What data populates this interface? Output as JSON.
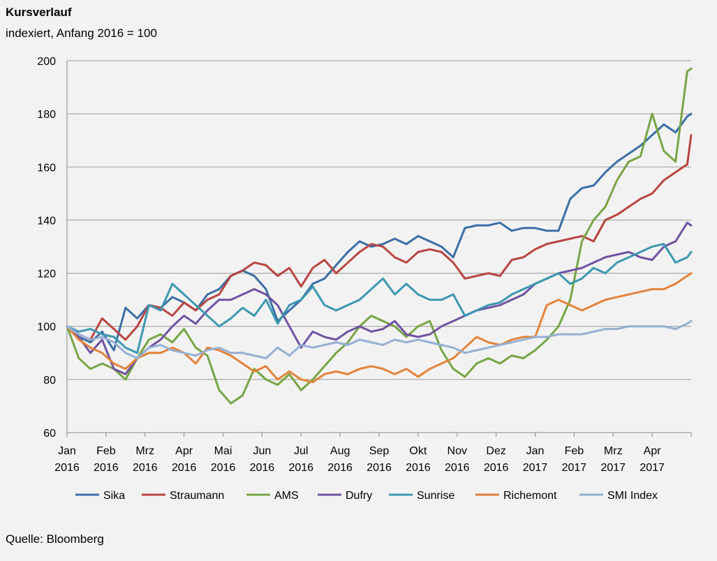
{
  "chart_data": {
    "type": "line",
    "title": "Kursverlauf",
    "subtitle": "indexiert, Anfang 2016 = 100",
    "source": "Quelle: Bloomberg",
    "ylim": [
      60,
      200
    ],
    "yticks": [
      "60",
      "80",
      "100",
      "120",
      "140",
      "160",
      "180",
      "200"
    ],
    "grid": true,
    "legend_position": "bottom",
    "x_ticks": [
      {
        "month": "Jan",
        "year": "2016"
      },
      {
        "month": "Feb",
        "year": "2016"
      },
      {
        "month": "Mrz",
        "year": "2016"
      },
      {
        "month": "Apr",
        "year": "2016"
      },
      {
        "month": "Mai",
        "year": "2016"
      },
      {
        "month": "Jun",
        "year": "2016"
      },
      {
        "month": "Jul",
        "year": "2016"
      },
      {
        "month": "Aug",
        "year": "2016"
      },
      {
        "month": "Sep",
        "year": "2016"
      },
      {
        "month": "Okt",
        "year": "2016"
      },
      {
        "month": "Nov",
        "year": "2016"
      },
      {
        "month": "Dez",
        "year": "2016"
      },
      {
        "month": "Jan",
        "year": "2017"
      },
      {
        "month": "Feb",
        "year": "2017"
      },
      {
        "month": "Mrz",
        "year": "2017"
      },
      {
        "month": "Apr",
        "year": "2017"
      }
    ],
    "x_range": [
      0,
      16
    ],
    "series": [
      {
        "name": "Sika",
        "color": "#3a6ea5",
        "x": [
          0,
          0.3,
          0.6,
          0.9,
          1.2,
          1.5,
          1.8,
          2.1,
          2.4,
          2.7,
          3.0,
          3.3,
          3.6,
          3.9,
          4.2,
          4.5,
          4.8,
          5.1,
          5.4,
          5.7,
          6.0,
          6.3,
          6.6,
          6.9,
          7.2,
          7.5,
          7.8,
          8.1,
          8.4,
          8.7,
          9.0,
          9.3,
          9.6,
          9.9,
          10.2,
          10.5,
          10.8,
          11.1,
          11.4,
          11.7,
          12.0,
          12.3,
          12.6,
          12.9,
          13.2,
          13.5,
          13.8,
          14.1,
          14.4,
          14.7,
          15.0,
          15.3,
          15.6,
          15.9,
          16.0
        ],
        "values": [
          100,
          96,
          94,
          98,
          91,
          107,
          103,
          108,
          107,
          111,
          109,
          106,
          112,
          114,
          119,
          121,
          119,
          114,
          102,
          106,
          110,
          116,
          118,
          123,
          128,
          132,
          130,
          131,
          133,
          131,
          134,
          132,
          130,
          126,
          137,
          138,
          138,
          139,
          136,
          137,
          137,
          136,
          136,
          148,
          152,
          153,
          158,
          162,
          165,
          168,
          172,
          176,
          173,
          179,
          180
        ]
      },
      {
        "name": "Straumann",
        "color": "#b84542",
        "x": [
          0,
          0.3,
          0.6,
          0.9,
          1.2,
          1.5,
          1.8,
          2.1,
          2.4,
          2.7,
          3.0,
          3.3,
          3.6,
          3.9,
          4.2,
          4.5,
          4.8,
          5.1,
          5.4,
          5.7,
          6.0,
          6.3,
          6.6,
          6.9,
          7.2,
          7.5,
          7.8,
          8.1,
          8.4,
          8.7,
          9.0,
          9.3,
          9.6,
          9.9,
          10.2,
          10.5,
          10.8,
          11.1,
          11.4,
          11.7,
          12.0,
          12.3,
          12.6,
          12.9,
          13.2,
          13.5,
          13.8,
          14.1,
          14.4,
          14.7,
          15.0,
          15.3,
          15.6,
          15.9,
          16.0
        ],
        "values": [
          100,
          97,
          95,
          103,
          99,
          95,
          100,
          108,
          107,
          104,
          109,
          106,
          110,
          112,
          119,
          121,
          124,
          123,
          119,
          122,
          115,
          122,
          125,
          120,
          124,
          128,
          131,
          130,
          126,
          124,
          128,
          129,
          128,
          124,
          118,
          119,
          120,
          119,
          125,
          126,
          129,
          131,
          132,
          133,
          134,
          132,
          140,
          142,
          145,
          148,
          150,
          155,
          158,
          161,
          172
        ]
      },
      {
        "name": "AMS",
        "color": "#77a546",
        "x": [
          0,
          0.3,
          0.6,
          0.9,
          1.2,
          1.5,
          1.8,
          2.1,
          2.4,
          2.7,
          3.0,
          3.3,
          3.6,
          3.9,
          4.2,
          4.5,
          4.8,
          5.1,
          5.4,
          5.7,
          6.0,
          6.3,
          6.6,
          6.9,
          7.2,
          7.5,
          7.8,
          8.1,
          8.4,
          8.7,
          9.0,
          9.3,
          9.6,
          9.9,
          10.2,
          10.5,
          10.8,
          11.1,
          11.4,
          11.7,
          12.0,
          12.3,
          12.6,
          12.9,
          13.2,
          13.5,
          13.8,
          14.1,
          14.4,
          14.7,
          15.0,
          15.3,
          15.6,
          15.9,
          16.0
        ],
        "values": [
          100,
          88,
          84,
          86,
          84,
          80,
          88,
          95,
          97,
          94,
          99,
          92,
          89,
          76,
          71,
          74,
          84,
          80,
          78,
          82,
          76,
          80,
          85,
          90,
          94,
          100,
          104,
          102,
          100,
          96,
          100,
          102,
          91,
          84,
          81,
          86,
          88,
          86,
          89,
          88,
          91,
          95,
          100,
          110,
          132,
          140,
          145,
          155,
          162,
          164,
          180,
          166,
          162,
          196,
          197
        ]
      },
      {
        "name": "Dufry",
        "color": "#7053a0",
        "x": [
          0,
          0.3,
          0.6,
          0.9,
          1.2,
          1.5,
          1.8,
          2.1,
          2.4,
          2.7,
          3.0,
          3.3,
          3.6,
          3.9,
          4.2,
          4.5,
          4.8,
          5.1,
          5.4,
          5.7,
          6.0,
          6.3,
          6.6,
          6.9,
          7.2,
          7.5,
          7.8,
          8.1,
          8.4,
          8.7,
          9.0,
          9.3,
          9.6,
          9.9,
          10.2,
          10.5,
          10.8,
          11.1,
          11.4,
          11.7,
          12.0,
          12.3,
          12.6,
          12.9,
          13.2,
          13.5,
          13.8,
          14.1,
          14.4,
          14.7,
          15.0,
          15.3,
          15.6,
          15.9,
          16.0
        ],
        "values": [
          100,
          96,
          90,
          95,
          84,
          82,
          88,
          92,
          95,
          100,
          104,
          101,
          106,
          110,
          110,
          112,
          114,
          112,
          108,
          100,
          92,
          98,
          96,
          95,
          98,
          100,
          98,
          99,
          102,
          97,
          96,
          97,
          100,
          102,
          104,
          106,
          107,
          108,
          110,
          112,
          116,
          118,
          120,
          121,
          122,
          124,
          126,
          127,
          128,
          126,
          125,
          130,
          132,
          139,
          138
        ]
      },
      {
        "name": "Sunrise",
        "color": "#3c97b0",
        "x": [
          0,
          0.3,
          0.6,
          0.9,
          1.2,
          1.5,
          1.8,
          2.1,
          2.4,
          2.7,
          3.0,
          3.3,
          3.6,
          3.9,
          4.2,
          4.5,
          4.8,
          5.1,
          5.4,
          5.7,
          6.0,
          6.3,
          6.6,
          6.9,
          7.2,
          7.5,
          7.8,
          8.1,
          8.4,
          8.7,
          9.0,
          9.3,
          9.6,
          9.9,
          10.2,
          10.5,
          10.8,
          11.1,
          11.4,
          11.7,
          12.0,
          12.3,
          12.6,
          12.9,
          13.2,
          13.5,
          13.8,
          14.1,
          14.4,
          14.7,
          15.0,
          15.3,
          15.6,
          15.9,
          16.0
        ],
        "values": [
          100,
          98,
          99,
          97,
          96,
          92,
          90,
          108,
          106,
          116,
          112,
          108,
          104,
          100,
          103,
          107,
          104,
          110,
          101,
          108,
          110,
          115,
          108,
          106,
          108,
          110,
          114,
          118,
          112,
          116,
          112,
          110,
          110,
          112,
          104,
          106,
          108,
          109,
          112,
          114,
          116,
          118,
          120,
          116,
          118,
          122,
          120,
          124,
          126,
          128,
          130,
          131,
          124,
          126,
          128
        ]
      },
      {
        "name": "Richemont",
        "color": "#e3833a",
        "x": [
          0,
          0.3,
          0.6,
          0.9,
          1.2,
          1.5,
          1.8,
          2.1,
          2.4,
          2.7,
          3.0,
          3.3,
          3.6,
          3.9,
          4.2,
          4.5,
          4.8,
          5.1,
          5.4,
          5.7,
          6.0,
          6.3,
          6.6,
          6.9,
          7.2,
          7.5,
          7.8,
          8.1,
          8.4,
          8.7,
          9.0,
          9.3,
          9.6,
          9.9,
          10.2,
          10.5,
          10.8,
          11.1,
          11.4,
          11.7,
          12.0,
          12.3,
          12.6,
          12.9,
          13.2,
          13.5,
          13.8,
          14.1,
          14.4,
          14.7,
          15.0,
          15.3,
          15.6,
          15.9,
          16.0
        ],
        "values": [
          100,
          95,
          92,
          90,
          86,
          84,
          88,
          90,
          90,
          92,
          90,
          86,
          92,
          91,
          89,
          86,
          83,
          85,
          80,
          83,
          80,
          79,
          82,
          83,
          82,
          84,
          85,
          84,
          82,
          84,
          81,
          84,
          86,
          88,
          92,
          96,
          94,
          93,
          95,
          96,
          96,
          108,
          110,
          108,
          106,
          108,
          110,
          111,
          112,
          113,
          114,
          114,
          116,
          119,
          120
        ]
      },
      {
        "name": "SMI Index",
        "color": "#96b0d4",
        "x": [
          0,
          0.3,
          0.6,
          0.9,
          1.2,
          1.5,
          1.8,
          2.1,
          2.4,
          2.7,
          3.0,
          3.3,
          3.6,
          3.9,
          4.2,
          4.5,
          4.8,
          5.1,
          5.4,
          5.7,
          6.0,
          6.3,
          6.6,
          6.9,
          7.2,
          7.5,
          7.8,
          8.1,
          8.4,
          8.7,
          9.0,
          9.3,
          9.6,
          9.9,
          10.2,
          10.5,
          10.8,
          11.1,
          11.4,
          11.7,
          12.0,
          12.3,
          12.6,
          12.9,
          13.2,
          13.5,
          13.8,
          14.1,
          14.4,
          14.7,
          15.0,
          15.3,
          15.6,
          15.9,
          16.0
        ],
        "values": [
          100,
          97,
          95,
          96,
          94,
          90,
          88,
          92,
          93,
          91,
          90,
          89,
          91,
          92,
          90,
          90,
          89,
          88,
          92,
          89,
          93,
          92,
          93,
          94,
          93,
          95,
          94,
          93,
          95,
          94,
          95,
          94,
          93,
          92,
          90,
          91,
          92,
          93,
          94,
          95,
          96,
          96,
          97,
          97,
          97,
          98,
          99,
          99,
          100,
          100,
          100,
          100,
          99,
          101,
          102
        ]
      }
    ]
  }
}
